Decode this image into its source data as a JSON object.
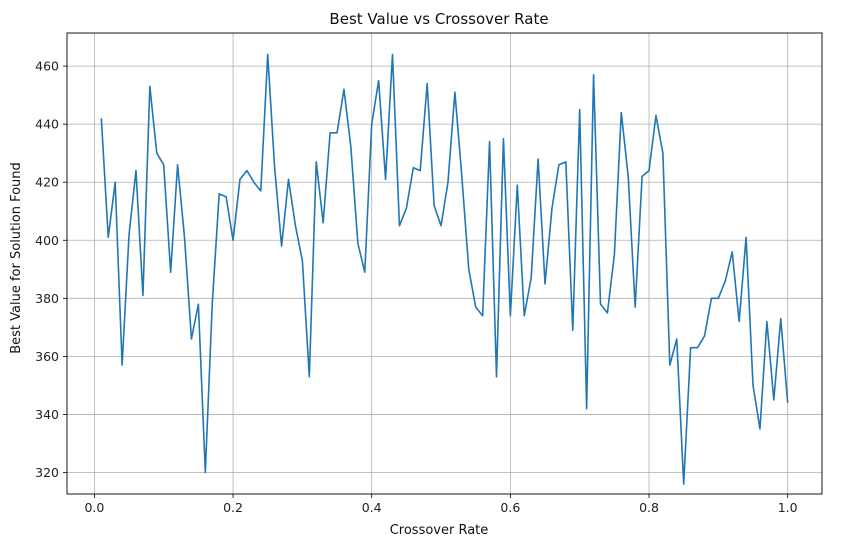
{
  "chart_data": {
    "type": "line",
    "title": "Best Value vs Crossover Rate",
    "xlabel": "Crossover Rate",
    "ylabel": "Best Value for Solution Found",
    "xlim": [
      -0.0395,
      1.0495
    ],
    "ylim": [
      312.6,
      471.4
    ],
    "xticks": [
      0.0,
      0.2,
      0.4,
      0.6,
      0.8,
      1.0
    ],
    "xtick_labels": [
      "0.0",
      "0.2",
      "0.4",
      "0.6",
      "0.8",
      "1.0"
    ],
    "yticks": [
      320,
      340,
      360,
      380,
      400,
      420,
      440,
      460
    ],
    "ytick_labels": [
      "320",
      "340",
      "360",
      "380",
      "400",
      "420",
      "440",
      "460"
    ],
    "grid": true,
    "line_color": "#1f77b4",
    "series": [
      {
        "x": [
          0.01,
          0.02,
          0.03,
          0.04,
          0.05,
          0.06,
          0.07,
          0.08,
          0.09,
          0.1,
          0.11,
          0.12,
          0.13,
          0.14,
          0.15,
          0.16,
          0.17,
          0.18,
          0.19,
          0.2,
          0.21,
          0.22,
          0.23,
          0.24,
          0.25,
          0.26,
          0.27,
          0.28,
          0.29,
          0.3,
          0.31,
          0.32,
          0.33,
          0.34,
          0.35,
          0.36,
          0.37,
          0.38,
          0.39,
          0.4,
          0.41,
          0.42,
          0.43,
          0.44,
          0.45,
          0.46,
          0.47,
          0.48,
          0.49,
          0.5,
          0.51,
          0.52,
          0.53,
          0.54,
          0.55,
          0.56,
          0.57,
          0.58,
          0.59,
          0.6,
          0.61,
          0.62,
          0.63,
          0.64,
          0.65,
          0.66,
          0.67,
          0.68,
          0.69,
          0.7,
          0.71,
          0.72,
          0.73,
          0.74,
          0.75,
          0.76,
          0.77,
          0.78,
          0.79,
          0.8,
          0.81,
          0.82,
          0.83,
          0.84,
          0.85,
          0.86,
          0.87,
          0.88,
          0.89,
          0.9,
          0.91,
          0.92,
          0.93,
          0.94,
          0.95,
          0.96,
          0.97,
          0.98,
          0.99,
          1.0
        ],
        "values": [
          442,
          401,
          420,
          357,
          402,
          424,
          381,
          453,
          430,
          426,
          389,
          426,
          401,
          366,
          378,
          320,
          378,
          416,
          415,
          400,
          421,
          424,
          420,
          417,
          464,
          425,
          398,
          421,
          405,
          393,
          353,
          427,
          406,
          437,
          437,
          452,
          432,
          399,
          389,
          440,
          455,
          421,
          464,
          405,
          411,
          425,
          424,
          454,
          412,
          405,
          420,
          451,
          422,
          390,
          377,
          374,
          434,
          353,
          435,
          374,
          419,
          374,
          387,
          428,
          385,
          411,
          426,
          427,
          369,
          445,
          342,
          457,
          378,
          375,
          395,
          444,
          422,
          377,
          422,
          424,
          443,
          430,
          357,
          366,
          316,
          363,
          363,
          367,
          380,
          380,
          386,
          396,
          372,
          401,
          350,
          335,
          372,
          345,
          373,
          344
        ]
      }
    ]
  }
}
